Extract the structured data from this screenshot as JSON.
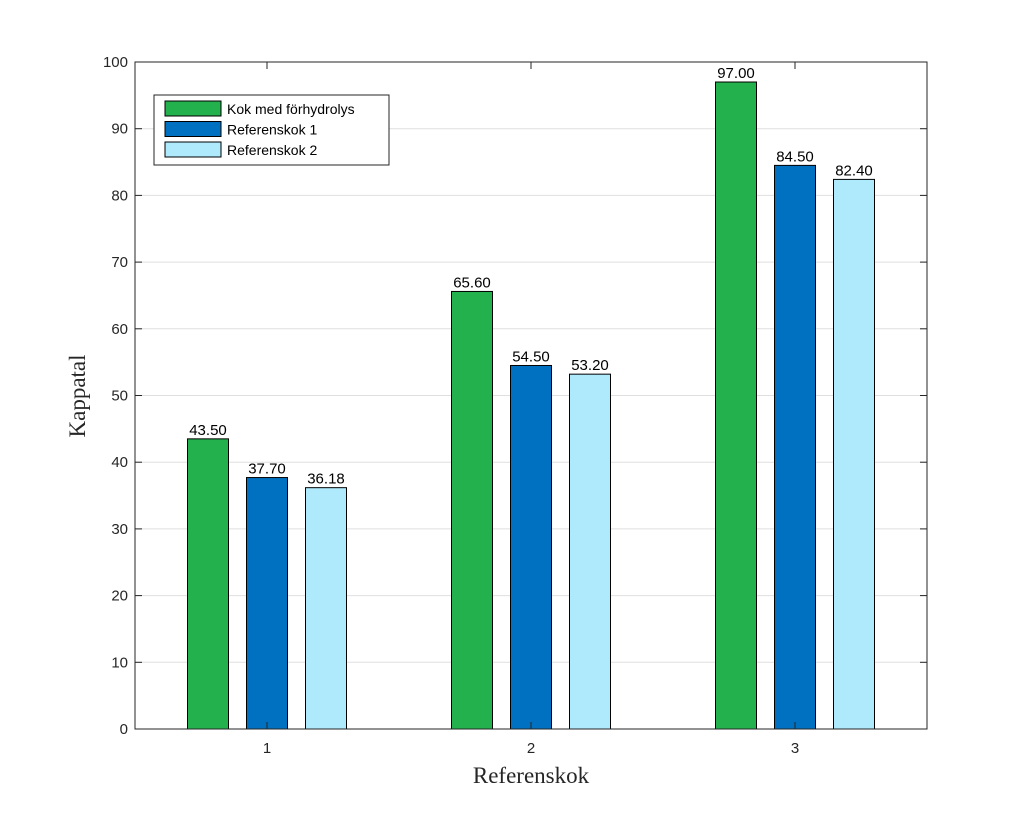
{
  "chart_data": {
    "type": "bar",
    "title": "",
    "xlabel": "Referenskok",
    "ylabel": "Kappatal",
    "categories": [
      "1",
      "2",
      "3"
    ],
    "ylim": [
      0,
      100
    ],
    "yticks": [
      0,
      10,
      20,
      30,
      40,
      50,
      60,
      70,
      80,
      90,
      100
    ],
    "grid": "horizontal",
    "legend_position": "top-left",
    "series": [
      {
        "name": "Kok med förhydrolys",
        "color": "#22b14c",
        "values": [
          43.5,
          65.6,
          97.0
        ],
        "labels": [
          "43.50",
          "65.60",
          "97.00"
        ]
      },
      {
        "name": "Referenskok 1",
        "color": "#0070c0",
        "values": [
          37.7,
          54.5,
          84.5
        ],
        "labels": [
          "37.70",
          "54.50",
          "84.50"
        ]
      },
      {
        "name": "Referenskok 2",
        "color": "#aeeafc",
        "values": [
          36.18,
          53.2,
          82.4
        ],
        "labels": [
          "36.18",
          "53.20",
          "82.40"
        ]
      }
    ]
  }
}
